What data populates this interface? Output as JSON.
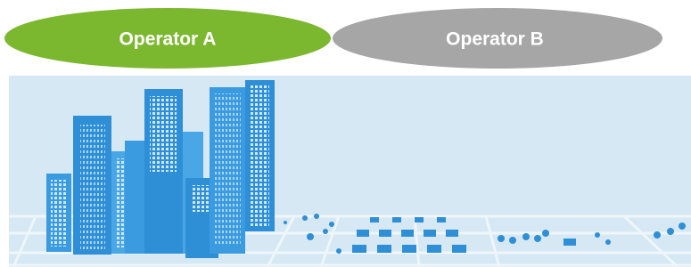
{
  "tabs": [
    {
      "label": "Operator A"
    },
    {
      "label": "Operator B"
    }
  ]
}
